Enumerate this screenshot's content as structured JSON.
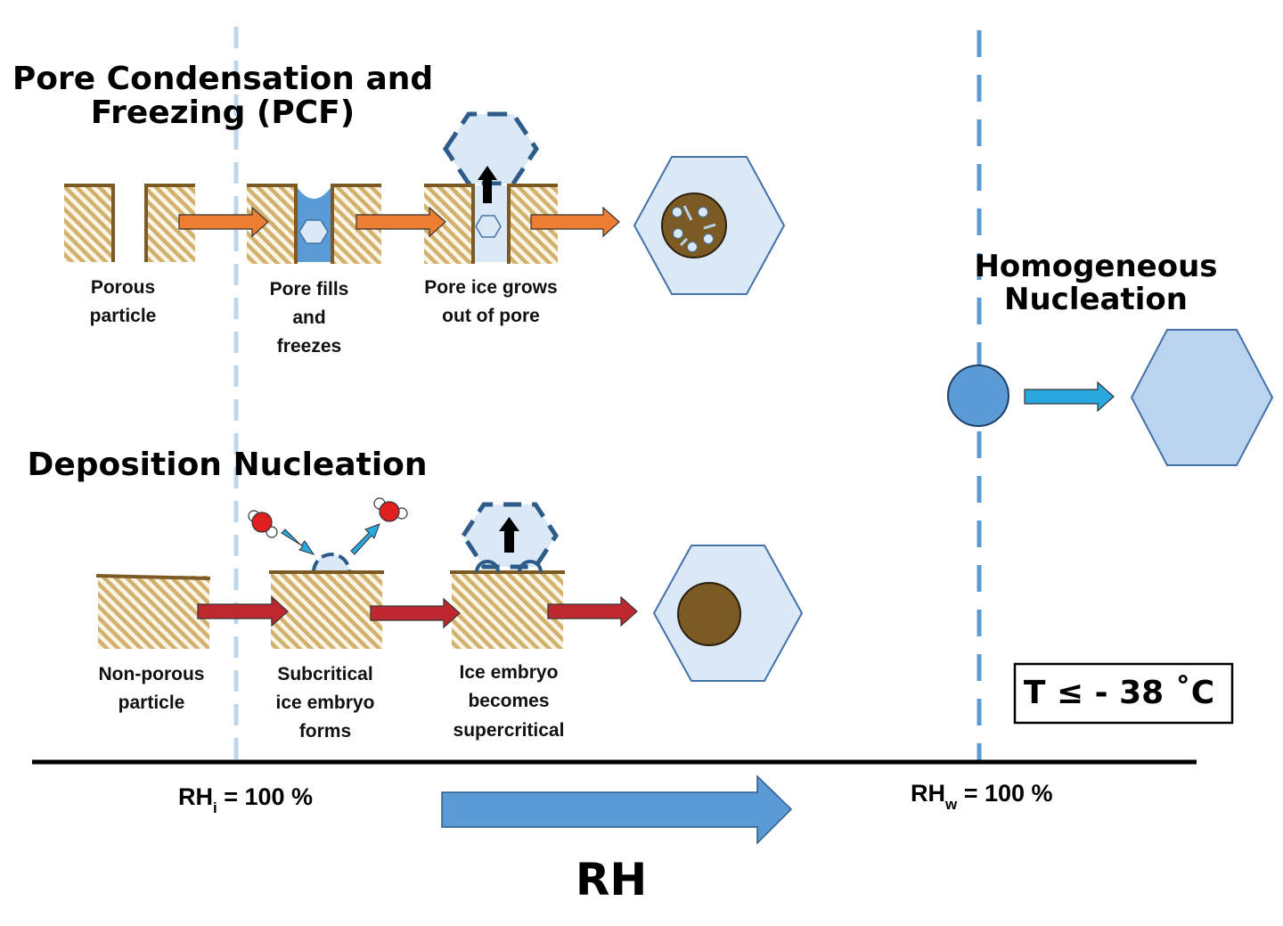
{
  "titles": {
    "pcf_line1": "Pore Condensation and",
    "pcf_line2": "Freezing (PCF)",
    "deposition": "Deposition Nucleation",
    "homogeneous_line1": "Homogeneous",
    "homogeneous_line2": "Nucleation"
  },
  "pcf_steps": [
    {
      "lines": [
        "Porous",
        "particle"
      ]
    },
    {
      "lines": [
        "Pore fills",
        "and",
        "freezes"
      ]
    },
    {
      "lines": [
        "Pore ice grows",
        "out of pore"
      ]
    }
  ],
  "deposition_steps": [
    {
      "lines": [
        "Non-porous",
        "particle"
      ]
    },
    {
      "lines": [
        "Subcritical",
        "ice embryo",
        "forms"
      ]
    },
    {
      "lines": [
        "Ice embryo",
        "becomes",
        "supercritical"
      ]
    }
  ],
  "axis": {
    "rhi_prefix": "RH",
    "rhi_sub": "i",
    "rhi_value": " = 100 %",
    "rhw_prefix": "RH",
    "rhw_sub": "w",
    "rhw_value": " = 100 %",
    "label": "RH"
  },
  "temperature_box": "T ≤ - 38 ˚C",
  "colors": {
    "pcf_arrow": "#ed7d31",
    "deposition_arrow": "#c0282f",
    "homogeneous_arrow": "#29a8e0",
    "rh_arrow": "#5b9bd5",
    "ice_fill": "#dbe8f5",
    "ice_stroke": "#4472a8",
    "water": "#5b9bd5",
    "particle_brown": "#7b5a24",
    "hatch_light": "#d7b777",
    "dashed_rhi": "#bcd7ee",
    "dashed_rhw": "#5b9bd5"
  }
}
